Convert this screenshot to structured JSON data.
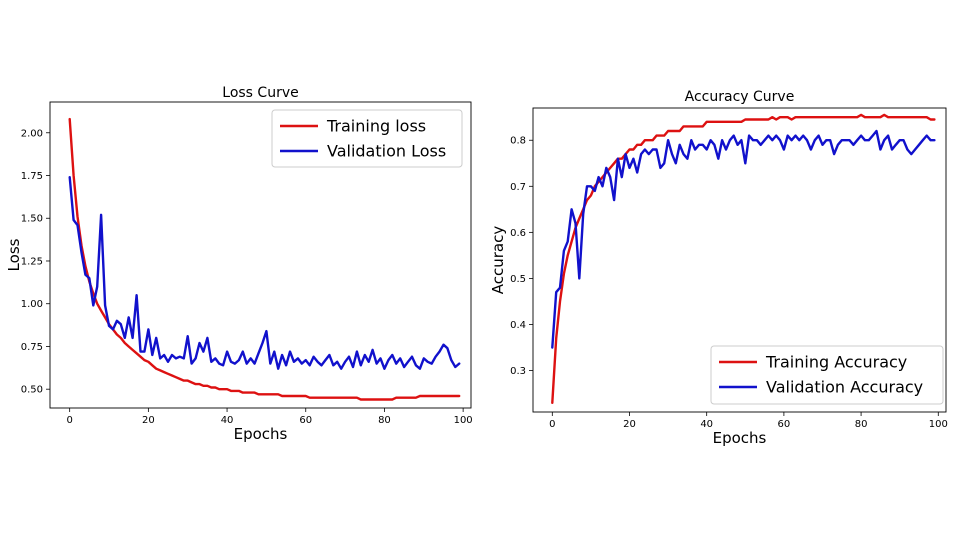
{
  "chart_data": [
    {
      "type": "line",
      "title": "Loss Curve",
      "xlabel": "Epochs",
      "ylabel": "Loss",
      "xlim": [
        -5,
        102
      ],
      "ylim": [
        0.39,
        2.18
      ],
      "xticks": [
        0,
        20,
        40,
        60,
        80,
        100
      ],
      "yticks": [
        0.5,
        0.75,
        1.0,
        1.25,
        1.5,
        1.75,
        2.0
      ],
      "ytick_labels": [
        "0.50",
        "0.75",
        "1.00",
        "1.25",
        "1.50",
        "1.75",
        "2.00"
      ],
      "legend_position": "top-right",
      "grid": false,
      "series": [
        {
          "name": "Training loss",
          "color": "#dd1111",
          "x": [
            0,
            1,
            2,
            3,
            4,
            5,
            6,
            7,
            8,
            9,
            10,
            11,
            12,
            13,
            14,
            15,
            16,
            17,
            18,
            19,
            20,
            21,
            22,
            23,
            24,
            25,
            26,
            27,
            28,
            29,
            30,
            31,
            32,
            33,
            34,
            35,
            36,
            37,
            38,
            39,
            40,
            41,
            42,
            43,
            44,
            45,
            46,
            47,
            48,
            49,
            50,
            51,
            52,
            53,
            54,
            55,
            56,
            57,
            58,
            59,
            60,
            61,
            62,
            63,
            64,
            65,
            66,
            67,
            68,
            69,
            70,
            71,
            72,
            73,
            74,
            75,
            76,
            77,
            78,
            79,
            80,
            81,
            82,
            83,
            84,
            85,
            86,
            87,
            88,
            89,
            90,
            91,
            92,
            93,
            94,
            95,
            96,
            97,
            98,
            99
          ],
          "y": [
            2.08,
            1.75,
            1.51,
            1.34,
            1.22,
            1.13,
            1.06,
            1.0,
            0.96,
            0.92,
            0.88,
            0.85,
            0.82,
            0.8,
            0.77,
            0.75,
            0.73,
            0.71,
            0.69,
            0.67,
            0.66,
            0.64,
            0.62,
            0.61,
            0.6,
            0.59,
            0.58,
            0.57,
            0.56,
            0.55,
            0.55,
            0.54,
            0.53,
            0.53,
            0.52,
            0.52,
            0.51,
            0.51,
            0.5,
            0.5,
            0.5,
            0.49,
            0.49,
            0.49,
            0.48,
            0.48,
            0.48,
            0.48,
            0.47,
            0.47,
            0.47,
            0.47,
            0.47,
            0.47,
            0.46,
            0.46,
            0.46,
            0.46,
            0.46,
            0.46,
            0.46,
            0.45,
            0.45,
            0.45,
            0.45,
            0.45,
            0.45,
            0.45,
            0.45,
            0.45,
            0.45,
            0.45,
            0.45,
            0.45,
            0.44,
            0.44,
            0.44,
            0.44,
            0.44,
            0.44,
            0.44,
            0.44,
            0.44,
            0.45,
            0.45,
            0.45,
            0.45,
            0.45,
            0.45,
            0.46,
            0.46,
            0.46,
            0.46,
            0.46,
            0.46,
            0.46,
            0.46,
            0.46,
            0.46,
            0.46
          ]
        },
        {
          "name": "Validation Loss",
          "color": "#1111cc",
          "x": [
            0,
            1,
            2,
            3,
            4,
            5,
            6,
            7,
            8,
            9,
            10,
            11,
            12,
            13,
            14,
            15,
            16,
            17,
            18,
            19,
            20,
            21,
            22,
            23,
            24,
            25,
            26,
            27,
            28,
            29,
            30,
            31,
            32,
            33,
            34,
            35,
            36,
            37,
            38,
            39,
            40,
            41,
            42,
            43,
            44,
            45,
            46,
            47,
            48,
            49,
            50,
            51,
            52,
            53,
            54,
            55,
            56,
            57,
            58,
            59,
            60,
            61,
            62,
            63,
            64,
            65,
            66,
            67,
            68,
            69,
            70,
            71,
            72,
            73,
            74,
            75,
            76,
            77,
            78,
            79,
            80,
            81,
            82,
            83,
            84,
            85,
            86,
            87,
            88,
            89,
            90,
            91,
            92,
            93,
            94,
            95,
            96,
            97,
            98,
            99
          ],
          "y": [
            1.74,
            1.49,
            1.46,
            1.3,
            1.17,
            1.15,
            0.99,
            1.1,
            1.52,
            0.99,
            0.87,
            0.85,
            0.9,
            0.88,
            0.8,
            0.92,
            0.8,
            1.05,
            0.72,
            0.72,
            0.85,
            0.7,
            0.8,
            0.68,
            0.7,
            0.66,
            0.7,
            0.68,
            0.69,
            0.68,
            0.81,
            0.65,
            0.68,
            0.77,
            0.72,
            0.8,
            0.66,
            0.68,
            0.65,
            0.64,
            0.72,
            0.66,
            0.65,
            0.67,
            0.72,
            0.65,
            0.68,
            0.65,
            0.71,
            0.77,
            0.84,
            0.65,
            0.72,
            0.62,
            0.7,
            0.64,
            0.72,
            0.66,
            0.68,
            0.65,
            0.67,
            0.64,
            0.69,
            0.66,
            0.64,
            0.67,
            0.7,
            0.64,
            0.66,
            0.62,
            0.66,
            0.69,
            0.63,
            0.72,
            0.64,
            0.7,
            0.66,
            0.73,
            0.65,
            0.68,
            0.62,
            0.67,
            0.7,
            0.65,
            0.68,
            0.63,
            0.66,
            0.69,
            0.64,
            0.62,
            0.68,
            0.66,
            0.65,
            0.69,
            0.72,
            0.76,
            0.74,
            0.67,
            0.63,
            0.65
          ]
        }
      ]
    },
    {
      "type": "line",
      "title": "Accuracy Curve",
      "xlabel": "Epochs",
      "ylabel": "Accuracy",
      "xlim": [
        -5,
        102
      ],
      "ylim": [
        0.21,
        0.87
      ],
      "xticks": [
        0,
        20,
        40,
        60,
        80,
        100
      ],
      "yticks": [
        0.3,
        0.4,
        0.5,
        0.6,
        0.7,
        0.8
      ],
      "ytick_labels": [
        "0.3",
        "0.4",
        "0.5",
        "0.6",
        "0.7",
        "0.8"
      ],
      "legend_position": "bottom-right",
      "grid": false,
      "series": [
        {
          "name": "Training Accuracy",
          "color": "#dd1111",
          "x": [
            0,
            1,
            2,
            3,
            4,
            5,
            6,
            7,
            8,
            9,
            10,
            11,
            12,
            13,
            14,
            15,
            16,
            17,
            18,
            19,
            20,
            21,
            22,
            23,
            24,
            25,
            26,
            27,
            28,
            29,
            30,
            31,
            32,
            33,
            34,
            35,
            36,
            37,
            38,
            39,
            40,
            41,
            42,
            43,
            44,
            45,
            46,
            47,
            48,
            49,
            50,
            51,
            52,
            53,
            54,
            55,
            56,
            57,
            58,
            59,
            60,
            61,
            62,
            63,
            64,
            65,
            66,
            67,
            68,
            69,
            70,
            71,
            72,
            73,
            74,
            75,
            76,
            77,
            78,
            79,
            80,
            81,
            82,
            83,
            84,
            85,
            86,
            87,
            88,
            89,
            90,
            91,
            92,
            93,
            94,
            95,
            96,
            97,
            98,
            99
          ],
          "y": [
            0.23,
            0.37,
            0.45,
            0.51,
            0.55,
            0.58,
            0.61,
            0.63,
            0.65,
            0.67,
            0.68,
            0.7,
            0.71,
            0.72,
            0.73,
            0.74,
            0.75,
            0.76,
            0.76,
            0.77,
            0.78,
            0.78,
            0.79,
            0.79,
            0.8,
            0.8,
            0.8,
            0.81,
            0.81,
            0.81,
            0.82,
            0.82,
            0.82,
            0.82,
            0.83,
            0.83,
            0.83,
            0.83,
            0.83,
            0.83,
            0.84,
            0.84,
            0.84,
            0.84,
            0.84,
            0.84,
            0.84,
            0.84,
            0.84,
            0.84,
            0.845,
            0.845,
            0.845,
            0.845,
            0.845,
            0.845,
            0.845,
            0.85,
            0.845,
            0.85,
            0.85,
            0.85,
            0.845,
            0.85,
            0.85,
            0.85,
            0.85,
            0.85,
            0.85,
            0.85,
            0.85,
            0.85,
            0.85,
            0.85,
            0.85,
            0.85,
            0.85,
            0.85,
            0.85,
            0.85,
            0.855,
            0.85,
            0.85,
            0.85,
            0.85,
            0.85,
            0.855,
            0.85,
            0.85,
            0.85,
            0.85,
            0.85,
            0.85,
            0.85,
            0.85,
            0.85,
            0.85,
            0.85,
            0.845,
            0.845
          ]
        },
        {
          "name": "Validation Accuracy",
          "color": "#1111cc",
          "x": [
            0,
            1,
            2,
            3,
            4,
            5,
            6,
            7,
            8,
            9,
            10,
            11,
            12,
            13,
            14,
            15,
            16,
            17,
            18,
            19,
            20,
            21,
            22,
            23,
            24,
            25,
            26,
            27,
            28,
            29,
            30,
            31,
            32,
            33,
            34,
            35,
            36,
            37,
            38,
            39,
            40,
            41,
            42,
            43,
            44,
            45,
            46,
            47,
            48,
            49,
            50,
            51,
            52,
            53,
            54,
            55,
            56,
            57,
            58,
            59,
            60,
            61,
            62,
            63,
            64,
            65,
            66,
            67,
            68,
            69,
            70,
            71,
            72,
            73,
            74,
            75,
            76,
            77,
            78,
            79,
            80,
            81,
            82,
            83,
            84,
            85,
            86,
            87,
            88,
            89,
            90,
            91,
            92,
            93,
            94,
            95,
            96,
            97,
            98,
            99
          ],
          "y": [
            0.35,
            0.47,
            0.48,
            0.56,
            0.58,
            0.65,
            0.62,
            0.5,
            0.64,
            0.7,
            0.7,
            0.69,
            0.72,
            0.7,
            0.74,
            0.72,
            0.67,
            0.76,
            0.72,
            0.77,
            0.74,
            0.76,
            0.73,
            0.77,
            0.78,
            0.77,
            0.78,
            0.78,
            0.74,
            0.75,
            0.8,
            0.77,
            0.75,
            0.79,
            0.77,
            0.76,
            0.8,
            0.78,
            0.79,
            0.79,
            0.78,
            0.8,
            0.79,
            0.76,
            0.8,
            0.78,
            0.8,
            0.81,
            0.79,
            0.8,
            0.75,
            0.81,
            0.8,
            0.8,
            0.79,
            0.8,
            0.81,
            0.8,
            0.81,
            0.8,
            0.78,
            0.81,
            0.8,
            0.81,
            0.8,
            0.81,
            0.8,
            0.78,
            0.8,
            0.81,
            0.79,
            0.8,
            0.8,
            0.77,
            0.79,
            0.8,
            0.8,
            0.8,
            0.79,
            0.8,
            0.81,
            0.8,
            0.8,
            0.81,
            0.82,
            0.78,
            0.8,
            0.81,
            0.78,
            0.79,
            0.8,
            0.8,
            0.78,
            0.77,
            0.78,
            0.79,
            0.8,
            0.81,
            0.8,
            0.8
          ]
        }
      ]
    }
  ]
}
